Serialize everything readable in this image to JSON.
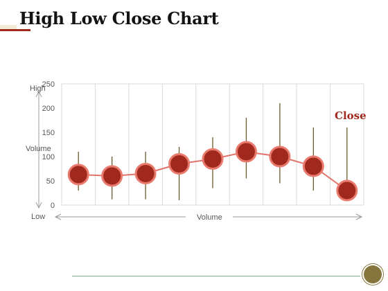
{
  "page": {
    "title": "High Low Close Chart"
  },
  "chart_data": {
    "type": "stock-hlc",
    "x": [
      1,
      2,
      3,
      4,
      5,
      6,
      7,
      8,
      9
    ],
    "high": [
      110,
      100,
      110,
      120,
      140,
      180,
      210,
      160,
      160
    ],
    "low": [
      30,
      12,
      12,
      10,
      35,
      55,
      45,
      30,
      25
    ],
    "close": [
      63,
      60,
      65,
      85,
      95,
      110,
      100,
      80,
      30
    ],
    "ylim": [
      0,
      250
    ],
    "yticks": [
      0,
      50,
      100,
      150,
      200,
      250
    ],
    "grid": "vertical",
    "close_label": "Close",
    "annotations": {
      "high": "High",
      "low": "Low",
      "volume_y": "Volume",
      "volume_x": "Volume"
    },
    "colors": {
      "marker_fill": "#a0281c",
      "marker_ring": "#e87a6e",
      "close_line": "#e0736a",
      "wick": "#6b5a2c",
      "close_label": "#a0281c",
      "grid": "#d9d9d9",
      "axis": "#999999",
      "text": "#555555"
    }
  }
}
